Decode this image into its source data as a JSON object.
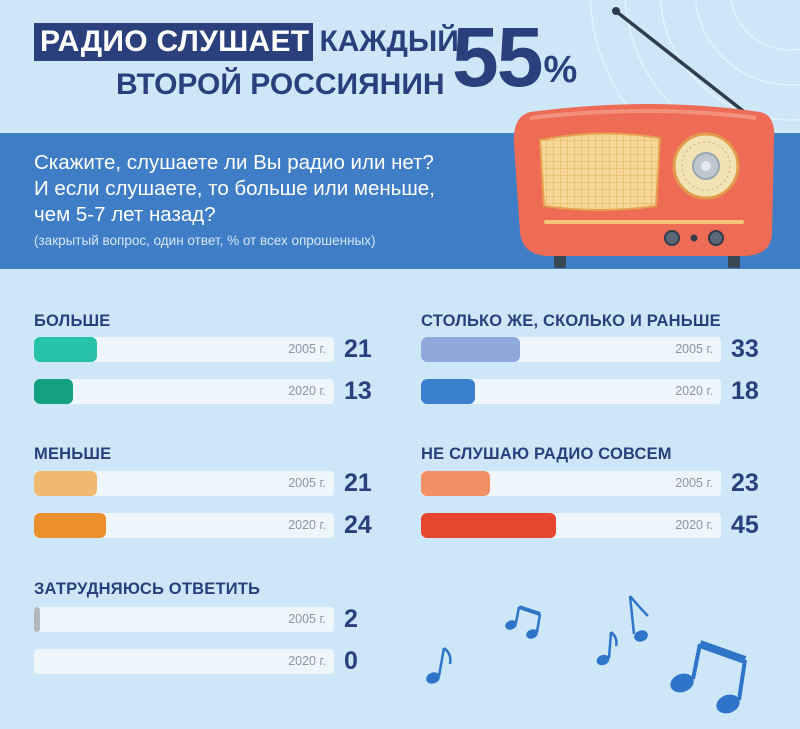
{
  "title": {
    "highlight": "РАДИО СЛУШАЕТ",
    "rest": "КАЖДЫЙ",
    "line2": "ВТОРОЙ РОССИЯНИН",
    "big_number": "55",
    "big_sign": "%"
  },
  "question": {
    "lines": [
      "Скажите, слушаете ли Вы радио или нет?",
      "И если слушаете, то больше или меньше,",
      "чем 5-7 лет назад?"
    ],
    "note": "(закрытый вопрос, один ответ, % от всех опрошенных)"
  },
  "colors": {
    "background": "#cde7f8",
    "band": "#3f7ec6",
    "title": "#2a3f7c",
    "radio_body": "#ee6b56",
    "music_notes": "#2e74c9"
  },
  "chart_data": {
    "type": "bar",
    "orientation": "horizontal",
    "xlim": [
      0,
      100
    ],
    "groups": [
      {
        "name": "БОЛЬШЕ",
        "colors": [
          "#27c2a7",
          "#14a181"
        ],
        "bars": [
          {
            "year": "2005 г.",
            "value": 21
          },
          {
            "year": "2020 г.",
            "value": 13
          }
        ]
      },
      {
        "name": "МЕНЬШЕ",
        "colors": [
          "#f1b872",
          "#ec8f2d"
        ],
        "bars": [
          {
            "year": "2005 г.",
            "value": 21
          },
          {
            "year": "2020 г.",
            "value": 24
          }
        ]
      },
      {
        "name": "ЗАТРУДНЯЮСЬ ОТВЕТИТЬ",
        "colors": [
          "#b3b7bc",
          "#b3b7bc"
        ],
        "bars": [
          {
            "year": "2005 г.",
            "value": 2
          },
          {
            "year": "2020 г.",
            "value": 0
          }
        ]
      },
      {
        "name": "СТОЛЬКО ЖЕ, СКОЛЬКО И РАНЬШЕ",
        "colors": [
          "#8fa9dd",
          "#3a80cc"
        ],
        "bars": [
          {
            "year": "2005 г.",
            "value": 33
          },
          {
            "year": "2020 г.",
            "value": 18
          }
        ]
      },
      {
        "name": "НЕ СЛУШАЮ РАДИО СОВСЕМ",
        "colors": [
          "#f29066",
          "#e6462d"
        ],
        "bars": [
          {
            "year": "2005 г.",
            "value": 23
          },
          {
            "year": "2020 г.",
            "value": 45
          }
        ]
      }
    ]
  }
}
